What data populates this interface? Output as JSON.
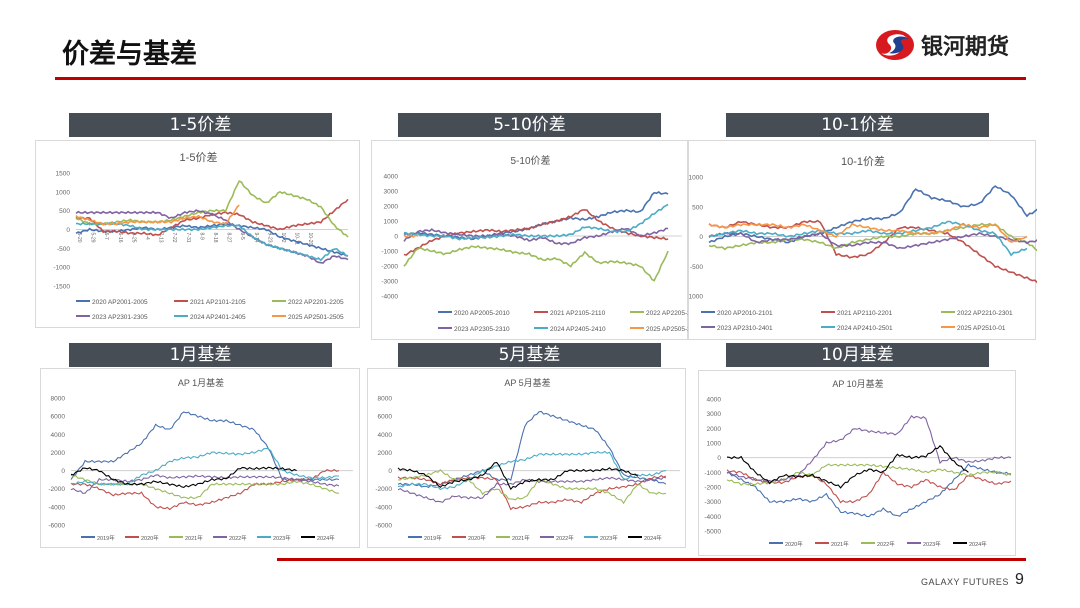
{
  "header": {
    "title": "价差与基差",
    "logo_text": "银河期货"
  },
  "footer": {
    "brand": "GALAXY FUTURES",
    "page": "9"
  },
  "sections": [
    "1-5价差",
    "5-10价差",
    "10-1价差",
    "1月基差",
    "5月基差",
    "10月基差"
  ],
  "colors": {
    "accent": "#c00000",
    "section_bg": "#474d55"
  },
  "chart_data": [
    {
      "type": "line",
      "title": "1-5价差",
      "ylim": [
        -1500,
        1500
      ],
      "yticks": [
        1500,
        1000,
        500,
        0,
        -500,
        -1000,
        -1500
      ],
      "xticks": [
        "5-20",
        "5-29",
        "6-7",
        "6-16",
        "6-25",
        "7-4",
        "7-13",
        "7-22",
        "7-31",
        "8-9",
        "8-18",
        "8-27",
        "9-5",
        "9-14",
        "9-23",
        "10-2",
        "10-11",
        "10-20"
      ],
      "series": [
        {
          "name": "2020 AP2001-2005",
          "color": "#4a72b0",
          "values": [
            -100,
            0,
            -50,
            -50,
            0,
            50,
            0,
            50,
            100,
            50,
            100,
            150,
            100,
            50,
            0,
            -200,
            -300,
            -400,
            -500,
            -600,
            -700
          ]
        },
        {
          "name": "2021 AP2101-2105",
          "color": "#c0504d",
          "values": [
            300,
            300,
            -50,
            -50,
            -100,
            -100,
            -150,
            50,
            250,
            300,
            400,
            450,
            400,
            200,
            100,
            0,
            100,
            150,
            200,
            500,
            800
          ]
        },
        {
          "name": "2022  AP2201-2205",
          "color": "#9bbb59",
          "values": [
            300,
            150,
            150,
            200,
            250,
            200,
            200,
            250,
            350,
            450,
            500,
            500,
            1300,
            900,
            700,
            1000,
            900,
            800,
            600,
            100,
            -200
          ]
        },
        {
          "name": "2023 AP2301-2305",
          "color": "#8064a2",
          "values": [
            450,
            450,
            450,
            450,
            450,
            450,
            450,
            300,
            450,
            500,
            400,
            250,
            0,
            -200,
            -400,
            -500,
            -600,
            -700,
            -900,
            -700,
            -800
          ]
        },
        {
          "name": "2024 AP2401-2405",
          "color": "#4bacc6",
          "values": [
            150,
            150,
            150,
            150,
            100,
            0,
            0,
            0,
            0,
            0,
            50,
            100,
            100,
            -200,
            -400,
            -500,
            -600,
            -700,
            -800,
            -500,
            -700
          ]
        },
        {
          "name": "2025  AP2501-2505",
          "color": "#f79646",
          "values": [
            350,
            250,
            150,
            150,
            200,
            200,
            200,
            200,
            300,
            350,
            200,
            150,
            650
          ]
        }
      ]
    },
    {
      "type": "line",
      "title": "5-10价差",
      "ylim": [
        -4000,
        4000
      ],
      "yticks": [
        4000,
        3000,
        2000,
        1000,
        0,
        -1000,
        -2000,
        -3000,
        -4000
      ],
      "xticks": [],
      "series": [
        {
          "name": "2020 AP2005-2010",
          "color": "#4a72b0",
          "values": [
            100,
            200,
            100,
            0,
            -100,
            -200,
            0,
            200,
            300,
            500,
            800,
            1000,
            1200,
            1100,
            1300,
            1600,
            1700,
            1600,
            2900,
            2800
          ]
        },
        {
          "name": "2021 AP2105-2110",
          "color": "#c0504d",
          "values": [
            -1300,
            -800,
            -300,
            0,
            200,
            300,
            400,
            300,
            400,
            500,
            800,
            1000,
            1300,
            1800,
            1000,
            500,
            200,
            0,
            -100,
            -200
          ]
        },
        {
          "name": "2022 AP2205-2210",
          "color": "#9bbb59",
          "values": [
            -2000,
            -800,
            -1000,
            -1200,
            -900,
            -700,
            -800,
            -900,
            -1100,
            -1200,
            -1600,
            -1500,
            -2000,
            -1100,
            -1800,
            -1700,
            -1800,
            -2000,
            -3000,
            -1000
          ]
        },
        {
          "name": "2023 AP2305-2310",
          "color": "#8064a2",
          "values": [
            -300,
            300,
            400,
            200,
            100,
            0,
            0,
            100,
            0,
            -300,
            -100,
            -500,
            -500,
            -100,
            0,
            300,
            500,
            0,
            200,
            500
          ]
        },
        {
          "name": "2024 AP2405-2410",
          "color": "#4bacc6",
          "values": [
            200,
            100,
            0,
            0,
            -200,
            -100,
            -100,
            0,
            100,
            0,
            0,
            0,
            100,
            600,
            500,
            300,
            300,
            800,
            1500,
            2100
          ]
        },
        {
          "name": "2025 AP2505-2510",
          "color": "#f79646",
          "values": [
            0,
            0
          ]
        }
      ]
    },
    {
      "type": "line",
      "title": "10-1价差",
      "ylim": [
        -1000,
        1000
      ],
      "yticks": [
        1000,
        500,
        0,
        -500,
        -1000
      ],
      "xticks": [],
      "series": [
        {
          "name": "2020  AP2010-2101",
          "color": "#4a72b0",
          "values": [
            -100,
            0,
            50,
            0,
            -50,
            -100,
            0,
            50,
            150,
            250,
            300,
            300,
            400,
            800,
            650,
            600,
            500,
            550,
            850,
            700,
            350,
            500
          ]
        },
        {
          "name": "2021 AP2110-2201",
          "color": "#c0504d",
          "values": [
            200,
            150,
            250,
            200,
            150,
            150,
            250,
            250,
            -300,
            -350,
            -300,
            -100,
            150,
            150,
            100,
            50,
            -100,
            -300,
            -500,
            -600,
            -700,
            -800
          ]
        },
        {
          "name": "2022 AP2210-2301",
          "color": "#9bbb59",
          "values": [
            -150,
            -200,
            -150,
            -100,
            -100,
            -50,
            -50,
            -100,
            -200,
            -100,
            -50,
            0,
            0,
            50,
            50,
            100,
            150,
            200,
            200,
            0,
            -100,
            -300
          ]
        },
        {
          "name": "2023  AP2310-2401",
          "color": "#8064a2",
          "values": [
            0,
            50,
            50,
            -100,
            -50,
            -50,
            0,
            50,
            -150,
            -150,
            -100,
            -100,
            -200,
            -150,
            -100,
            -50,
            0,
            50,
            0,
            -50,
            -100,
            -50
          ]
        },
        {
          "name": "2024 AP2410-2501",
          "color": "#4bacc6",
          "values": [
            0,
            50,
            100,
            50,
            50,
            0,
            50,
            100,
            50,
            50,
            100,
            50,
            50,
            100,
            150,
            250,
            200,
            100,
            50,
            -300,
            -200
          ]
        },
        {
          "name": "2025 AP2510-01",
          "color": "#f79646",
          "values": [
            200,
            150,
            200,
            200,
            200,
            150,
            200,
            100,
            0,
            200,
            150,
            100,
            100,
            50,
            50,
            100,
            200,
            150,
            200,
            -100,
            0
          ]
        }
      ]
    },
    {
      "type": "line",
      "title": "AP 1月基差",
      "ylim": [
        -6000,
        8000
      ],
      "yticks": [
        8000,
        6000,
        4000,
        2000,
        0,
        -2000,
        -4000,
        -6000
      ],
      "xticks": [],
      "series": [
        {
          "name": "2019年",
          "color": "#4a72b0",
          "values": [
            -1000,
            1000,
            1000,
            1000,
            2000,
            3000,
            5000,
            4500,
            6500,
            6000,
            5500,
            5500,
            5000,
            4500,
            2500,
            -1000,
            -1000,
            -1000,
            -1000,
            -1000
          ]
        },
        {
          "name": "2020年",
          "color": "#c0504d",
          "values": [
            -1500,
            -1500,
            -2000,
            -2700,
            -2500,
            -2500,
            -4000,
            -4200,
            -3500,
            -3800,
            -3500,
            -3000,
            -2500,
            -1500,
            -1500,
            -1200,
            -1000,
            -1000,
            0,
            0
          ]
        },
        {
          "name": "2021年",
          "color": "#9bbb59",
          "values": [
            -500,
            -1000,
            -1500,
            -1500,
            -1500,
            -1500,
            -2000,
            -2500,
            -3000,
            -3000,
            -1500,
            -1500,
            -1500,
            -1500,
            -1500,
            -1500,
            -1200,
            -1500,
            -2000,
            -2500
          ]
        },
        {
          "name": "2022年",
          "color": "#8064a2",
          "values": [
            -2000,
            -2500,
            -1000,
            -1000,
            -1200,
            -1000,
            -500,
            -800,
            -700,
            -600,
            -700,
            -800,
            -700,
            -700,
            -700,
            -800,
            -1000,
            -1200,
            -1500,
            -1700
          ]
        },
        {
          "name": "2023年",
          "color": "#4bacc6",
          "values": [
            -1500,
            -1200,
            -1500,
            -1500,
            -1500,
            -500,
            0,
            1000,
            1400,
            1500,
            2000,
            1900,
            1800,
            2000,
            2500,
            0,
            -500,
            -800,
            -800,
            -600
          ]
        },
        {
          "name": "2024年",
          "color": "#000000",
          "values": [
            -500,
            300,
            0,
            -1000,
            -1500,
            -1500,
            -1200,
            -1500,
            -1800,
            -1500,
            -1000,
            -900,
            300,
            200,
            300,
            200,
            0
          ]
        }
      ]
    },
    {
      "type": "line",
      "title": "AP 5月基差",
      "ylim": [
        -6000,
        8000
      ],
      "yticks": [
        8000,
        6000,
        4000,
        2000,
        0,
        -2000,
        -4000,
        -6000
      ],
      "xticks": [],
      "series": [
        {
          "name": "2019年",
          "color": "#4a72b0",
          "values": [
            -1500,
            -1500,
            -1800,
            -1500,
            -1000,
            -500,
            0,
            -1000,
            -1000,
            5000,
            6500,
            6000,
            5500,
            5000,
            4500,
            2500,
            -500,
            -800,
            -1000,
            -1500
          ]
        },
        {
          "name": "2020年",
          "color": "#c0504d",
          "values": [
            -800,
            -800,
            -1000,
            -1500,
            -1000,
            -800,
            -800,
            -1000,
            -4200,
            -4000,
            -3500,
            -3500,
            -3200,
            -3500,
            -2500,
            -2000,
            -1800,
            -1500,
            -800,
            -600
          ]
        },
        {
          "name": "2021年",
          "color": "#9bbb59",
          "values": [
            -1000,
            -800,
            -500,
            0,
            -1000,
            -1000,
            -2500,
            -2000,
            -3200,
            -3000,
            -1000,
            -1500,
            -2000,
            -2000,
            -2000,
            -2500,
            -3500,
            -1500,
            -2500,
            -2500
          ]
        },
        {
          "name": "2022年",
          "color": "#8064a2",
          "values": [
            -2000,
            -2500,
            -3000,
            -3500,
            -2800,
            -3000,
            -3000,
            -1500,
            -1500,
            -1000,
            -1200,
            -1200,
            -1200,
            -1200,
            -1000,
            -800,
            -1000,
            -1200,
            -1000,
            -800
          ]
        },
        {
          "name": "2023年",
          "color": "#4bacc6",
          "values": [
            -1800,
            -1500,
            -1500,
            -2000,
            -1800,
            -1000,
            0,
            500,
            1000,
            1200,
            1800,
            1800,
            1800,
            1800,
            2000,
            2000,
            -1000,
            -500,
            -500,
            0
          ]
        },
        {
          "name": "2024年",
          "color": "#000000",
          "values": [
            200,
            0,
            -500,
            -1800,
            -1200,
            -1000,
            -500,
            1000,
            -2000,
            -1200,
            -1000,
            -1000,
            0,
            0,
            0,
            200,
            0,
            -600
          ]
        }
      ]
    },
    {
      "type": "line",
      "title": "AP 10月基差",
      "ylim": [
        -5000,
        4000
      ],
      "yticks": [
        4000,
        3000,
        2000,
        1000,
        0,
        -1000,
        -2000,
        -3000,
        -4000,
        -5000
      ],
      "xticks": [],
      "series": [
        {
          "name": "2020年",
          "color": "#4a72b0",
          "values": [
            -1000,
            -1500,
            -2000,
            -3000,
            -3000,
            -2800,
            -3000,
            -2500,
            -3700,
            -3800,
            -4000,
            -3500,
            -4000,
            -3500,
            -3000,
            -2500,
            -1500,
            -500,
            -800,
            -1000,
            -1100
          ]
        },
        {
          "name": "2021年",
          "color": "#c0504d",
          "values": [
            -900,
            -1000,
            -1500,
            -1700,
            -1700,
            -1300,
            -1200,
            -1800,
            -3000,
            -3000,
            -2500,
            -1000,
            -1800,
            -2000,
            -1500,
            -2000,
            -2200,
            -1200,
            -1500,
            -1800,
            -1600
          ]
        },
        {
          "name": "2022年",
          "color": "#9bbb59",
          "values": [
            -1500,
            -1800,
            -1800,
            -1700,
            -1500,
            -1000,
            -1200,
            -500,
            -500,
            -500,
            -500,
            -600,
            -700,
            -800,
            -1000,
            -800,
            -1000,
            -1200,
            -1000,
            -1000,
            -1200
          ]
        },
        {
          "name": "2023年",
          "color": "#8064a2",
          "values": [
            -1000,
            -1300,
            -1500,
            -1600,
            -1500,
            -1200,
            -200,
            1000,
            1200,
            2000,
            1800,
            1700,
            1600,
            2800,
            2700,
            -300,
            0,
            -300,
            -200,
            0,
            0
          ]
        },
        {
          "name": "2024年",
          "color": "#000000",
          "values": [
            0,
            0,
            -1000,
            -1700,
            -1200,
            -1300,
            -1200,
            -1600,
            -2000,
            -1200,
            -800,
            -1000,
            200,
            0,
            100,
            800,
            -300,
            -1000
          ]
        }
      ]
    }
  ]
}
